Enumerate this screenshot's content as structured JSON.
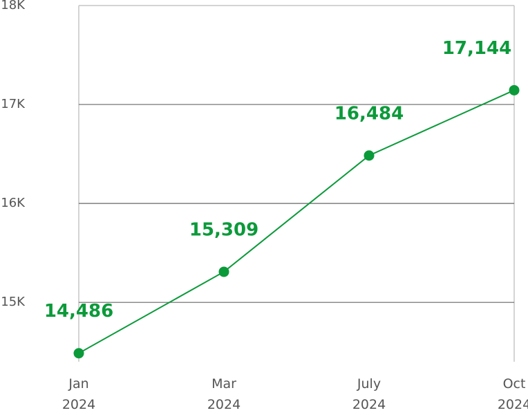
{
  "chart_data": {
    "type": "line",
    "categories": [
      "Jan 2024",
      "Mar 2024",
      "July 2024",
      "Oct 2024"
    ],
    "series": [
      {
        "color": "#0b9a3a",
        "values": [
          14486,
          15309,
          16484,
          17144
        ],
        "value_labels": [
          "14,486",
          "15,309",
          "16,484",
          "17,144"
        ]
      }
    ],
    "ylim": [
      14400,
      18000
    ],
    "yticks": [
      {
        "value": 15000,
        "label": "15K"
      },
      {
        "value": 16000,
        "label": "16K"
      },
      {
        "value": 17000,
        "label": "17K"
      },
      {
        "value": 18000,
        "label": "18K"
      }
    ],
    "grid": true
  }
}
